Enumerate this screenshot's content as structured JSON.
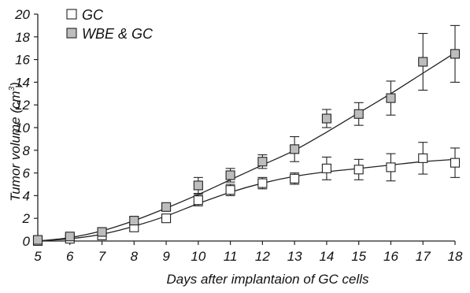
{
  "chart_data": {
    "type": "line",
    "title": "",
    "xlabel": "Days after implantaion of GC cells",
    "ylabel_main": "Tumor volume (cm",
    "ylabel_sup": "3",
    "ylabel_close": ")",
    "xlim": [
      5,
      18
    ],
    "ylim": [
      0,
      20
    ],
    "x_ticks": [
      5,
      6,
      7,
      8,
      9,
      10,
      11,
      12,
      13,
      14,
      15,
      16,
      17,
      18
    ],
    "y_ticks": [
      0,
      2,
      4,
      6,
      8,
      10,
      12,
      14,
      16,
      18,
      20
    ],
    "grid": false,
    "legend_position": "top-left",
    "series": [
      {
        "name": "GC",
        "marker": "square-open",
        "color": "#ffffff",
        "x": [
          5,
          6,
          7,
          8,
          9,
          10,
          11,
          12,
          13,
          14,
          15,
          16,
          17,
          18
        ],
        "values": [
          0.0,
          0.2,
          0.5,
          1.2,
          2.0,
          3.6,
          4.5,
          5.1,
          5.5,
          6.4,
          6.3,
          6.5,
          7.3,
          6.9
        ],
        "error": [
          0.0,
          0.1,
          0.2,
          0.3,
          0.3,
          0.5,
          0.5,
          0.5,
          0.5,
          1.0,
          0.9,
          1.2,
          1.4,
          1.3
        ],
        "trend": [
          0.0,
          0.2,
          0.6,
          1.3,
          2.2,
          3.3,
          4.3,
          5.1,
          5.7,
          6.1,
          6.4,
          6.7,
          7.0,
          7.2
        ]
      },
      {
        "name": "WBE & GC",
        "marker": "square-filled",
        "color": "#bdbdbd",
        "x": [
          5,
          6,
          7,
          8,
          9,
          10,
          11,
          12,
          13,
          14,
          15,
          16,
          17,
          18
        ],
        "values": [
          0.1,
          0.4,
          0.8,
          1.8,
          3.0,
          4.9,
          5.8,
          7.0,
          8.1,
          10.8,
          11.2,
          12.6,
          15.8,
          16.5
        ],
        "error": [
          0.0,
          0.1,
          0.2,
          0.3,
          0.3,
          0.7,
          0.6,
          0.6,
          1.1,
          0.8,
          1.0,
          1.5,
          2.5,
          2.5
        ],
        "trend": [
          0.0,
          0.3,
          0.9,
          1.8,
          2.9,
          4.1,
          5.4,
          6.7,
          8.0,
          9.6,
          11.3,
          13.0,
          14.8,
          16.6
        ]
      }
    ]
  }
}
